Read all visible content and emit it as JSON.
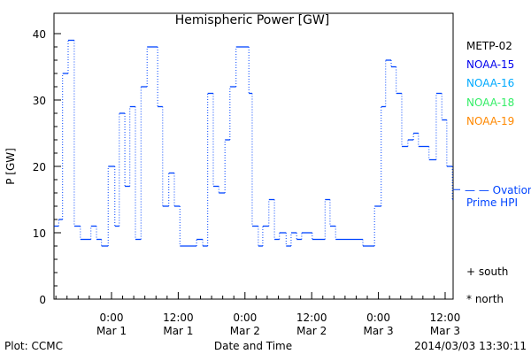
{
  "chart_data": {
    "type": "line",
    "style": "step",
    "title": "Hemispheric Power [GW]",
    "ylabel": "P [GW]",
    "xlabel": "Date and Time",
    "ylim": [
      0,
      40
    ],
    "yticks": [
      0,
      10,
      20,
      30,
      40
    ],
    "xlim_hours_from_mar1": [
      -10.4,
      61.4
    ],
    "xticks": [
      {
        "h": 0,
        "time": "0:00",
        "date": "Mar 1"
      },
      {
        "h": 12,
        "time": "12:00",
        "date": "Mar 1"
      },
      {
        "h": 24,
        "time": "0:00",
        "date": "Mar 2"
      },
      {
        "h": 36,
        "time": "12:00",
        "date": "Mar 2"
      },
      {
        "h": 48,
        "time": "0:00",
        "date": "Mar 3"
      },
      {
        "h": 60,
        "time": "12:00",
        "date": "Mar 3"
      }
    ],
    "series": [
      {
        "name": "NOAA-15",
        "color": "#0044ff",
        "steps": [
          [
            -10.3,
            11
          ],
          [
            -9.5,
            12
          ],
          [
            -8.8,
            34
          ],
          [
            -7.8,
            39
          ],
          [
            -6.7,
            11
          ],
          [
            -5.6,
            9
          ],
          [
            -3.7,
            11
          ],
          [
            -2.7,
            9
          ],
          [
            -1.8,
            8
          ],
          [
            -0.6,
            20
          ],
          [
            0.6,
            11
          ],
          [
            1.4,
            28
          ],
          [
            2.4,
            17
          ],
          [
            3.3,
            29
          ],
          [
            4.3,
            9
          ],
          [
            5.3,
            32
          ],
          [
            6.4,
            38
          ],
          [
            8.3,
            29
          ],
          [
            9.2,
            14
          ],
          [
            10.3,
            19
          ],
          [
            11.3,
            14
          ],
          [
            12.3,
            8
          ],
          [
            15.3,
            9
          ],
          [
            16.4,
            8
          ],
          [
            17.3,
            31
          ],
          [
            18.3,
            17
          ],
          [
            19.3,
            16
          ],
          [
            20.4,
            24
          ],
          [
            21.3,
            32
          ],
          [
            22.4,
            38
          ],
          [
            24.7,
            31
          ],
          [
            25.3,
            11
          ],
          [
            26.4,
            8
          ],
          [
            27.2,
            11
          ],
          [
            28.3,
            15
          ],
          [
            29.3,
            9
          ],
          [
            30.2,
            10
          ],
          [
            31.4,
            8
          ],
          [
            32.3,
            10
          ],
          [
            33.3,
            9
          ],
          [
            34.2,
            10
          ],
          [
            36.1,
            9
          ],
          [
            38.4,
            15
          ],
          [
            39.3,
            11
          ],
          [
            40.3,
            9
          ],
          [
            45.2,
            8
          ],
          [
            47.3,
            14
          ],
          [
            48.5,
            29
          ],
          [
            49.3,
            36
          ],
          [
            50.3,
            35
          ],
          [
            51.2,
            31
          ],
          [
            52.2,
            23
          ],
          [
            53.3,
            24
          ],
          [
            54.3,
            25
          ],
          [
            55.2,
            23
          ],
          [
            57.1,
            21
          ],
          [
            58.4,
            31
          ],
          [
            59.4,
            27
          ],
          [
            60.3,
            20
          ],
          [
            61.3,
            15
          ]
        ],
        "end": 61.4
      }
    ],
    "ovation_prime_hpi": 16.5,
    "legend": {
      "placement": "right",
      "satellites": [
        {
          "label": "METP-02",
          "color": "#000000"
        },
        {
          "label": "NOAA-15",
          "color": "#0000ee"
        },
        {
          "label": "NOAA-16",
          "color": "#00aaff"
        },
        {
          "label": "NOAA-18",
          "color": "#33ee66"
        },
        {
          "label": "NOAA-19",
          "color": "#ff8800"
        }
      ],
      "ovation_line1": "— — Ovation",
      "ovation_line2": "Prime HPI",
      "ovation_color": "#0044ff",
      "south": "+ south",
      "north": "* north"
    }
  },
  "footer": {
    "plot_credit": "Plot: CCMC",
    "timestamp": "2014/03/03 13:30:11"
  }
}
